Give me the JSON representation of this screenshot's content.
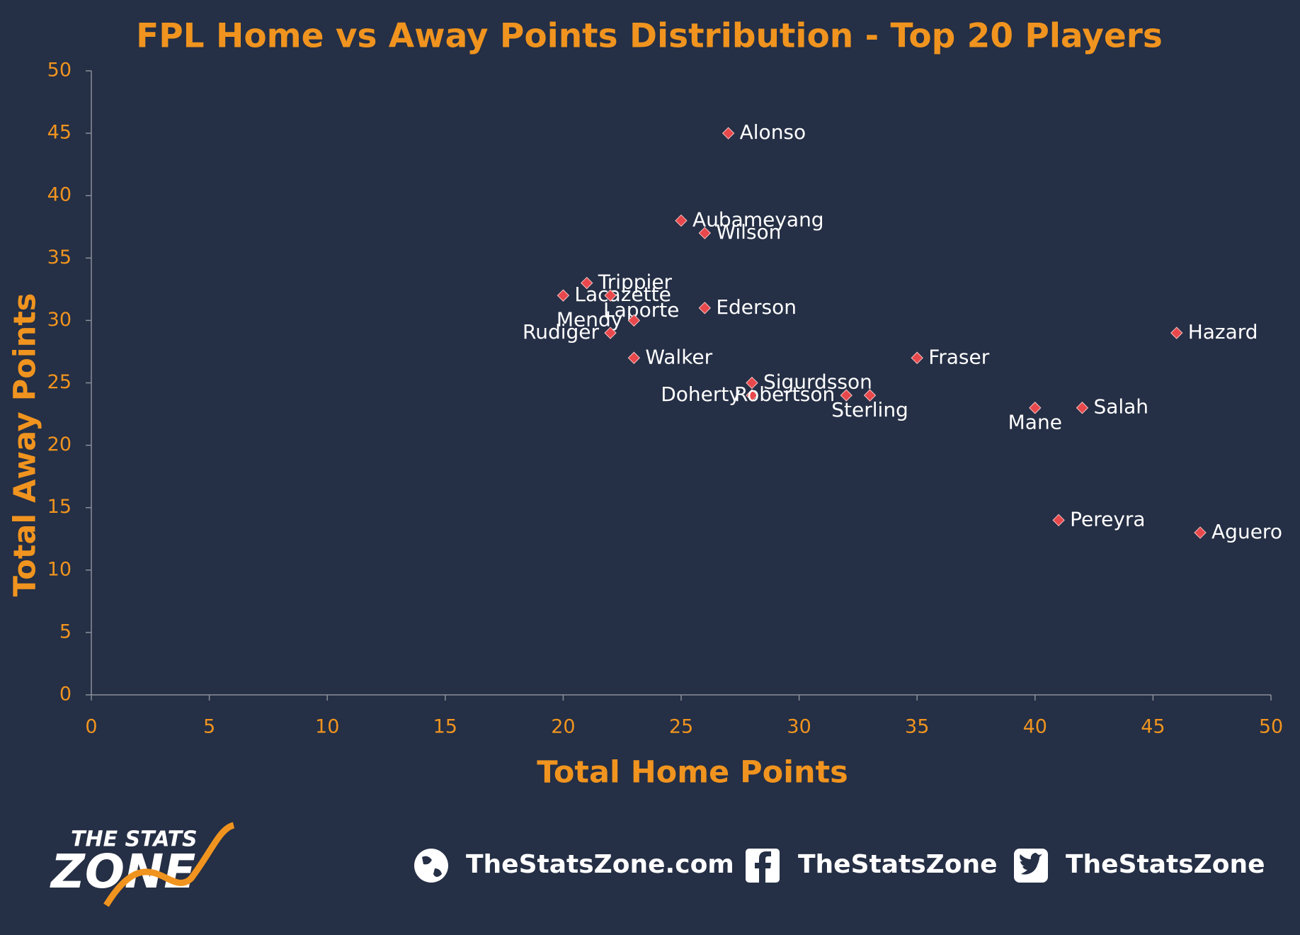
{
  "chart_data": {
    "type": "scatter",
    "title": "FPL Home vs Away Points Distribution - Top 20 Players",
    "xlabel": "Total Home Points",
    "ylabel": "Total Away Points",
    "labels": [
      "Alonso",
      "Aubameyang",
      "Wilson",
      "Trippier",
      "Lacazette",
      "Laporte",
      "Mendy",
      "Rudiger",
      "Walker",
      "Ederson",
      "Sigurdsson",
      "Doherty",
      "Robertson",
      "Sterling",
      "Fraser",
      "Mane",
      "Salah",
      "Hazard",
      "Pereyra",
      "Aguero"
    ],
    "x": [
      27,
      25,
      26,
      21,
      20,
      22,
      23,
      22,
      23,
      26,
      28,
      28,
      32,
      33,
      35,
      40,
      42,
      46,
      41,
      47
    ],
    "y": [
      45,
      38,
      37,
      33,
      32,
      32,
      30,
      29,
      27,
      31,
      25,
      24,
      24,
      24,
      27,
      23,
      23,
      29,
      14,
      13
    ],
    "color": "#e8484c",
    "xlim": [
      0,
      50
    ],
    "xticks": [
      0,
      5,
      10,
      15,
      20,
      25,
      30,
      35,
      40,
      45,
      50
    ],
    "ylim": [
      0,
      50
    ],
    "yticks": [
      0,
      5,
      10,
      15,
      20,
      25,
      30,
      35,
      40,
      45,
      50
    ]
  },
  "footer": {
    "logo_top": "THE STATS",
    "logo_bottom": "ZONE",
    "website": "TheStatsZone.com",
    "facebook": "TheStatsZone",
    "twitter": "TheStatsZone"
  }
}
